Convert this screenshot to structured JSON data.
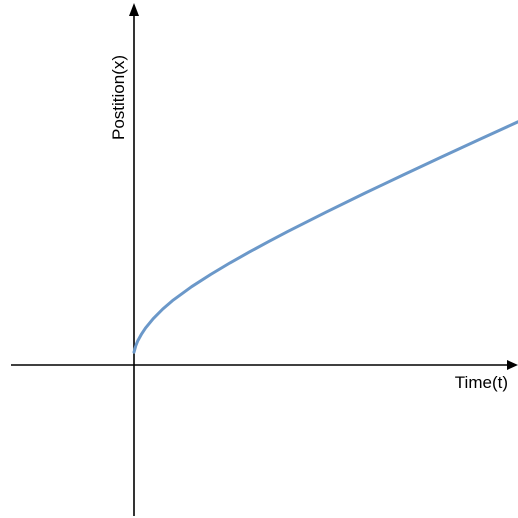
{
  "chart_data": {
    "type": "line",
    "title": "",
    "xlabel": "Time(t)",
    "ylabel": "Postition(x)",
    "xlim": [
      0,
      10
    ],
    "ylim": [
      -4,
      10
    ],
    "grid": false,
    "legend": "none",
    "series": [
      {
        "color": "#6b98c9",
        "x": [
          0,
          0.05,
          0.1,
          0.2,
          0.3,
          0.5,
          0.75,
          1,
          1.5,
          2,
          2.5,
          3,
          3.5,
          4,
          5,
          6,
          7,
          8,
          9,
          10
        ],
        "y": [
          0.55,
          0.74,
          0.87,
          1.06,
          1.22,
          1.48,
          1.75,
          1.98,
          2.37,
          2.71,
          3.03,
          3.33,
          3.62,
          3.9,
          4.44,
          4.96,
          5.47,
          5.97,
          6.46,
          6.95
        ]
      }
    ]
  },
  "colors": {
    "axis": "#000000",
    "curve": "#6b98c9",
    "background": "#ffffff"
  }
}
